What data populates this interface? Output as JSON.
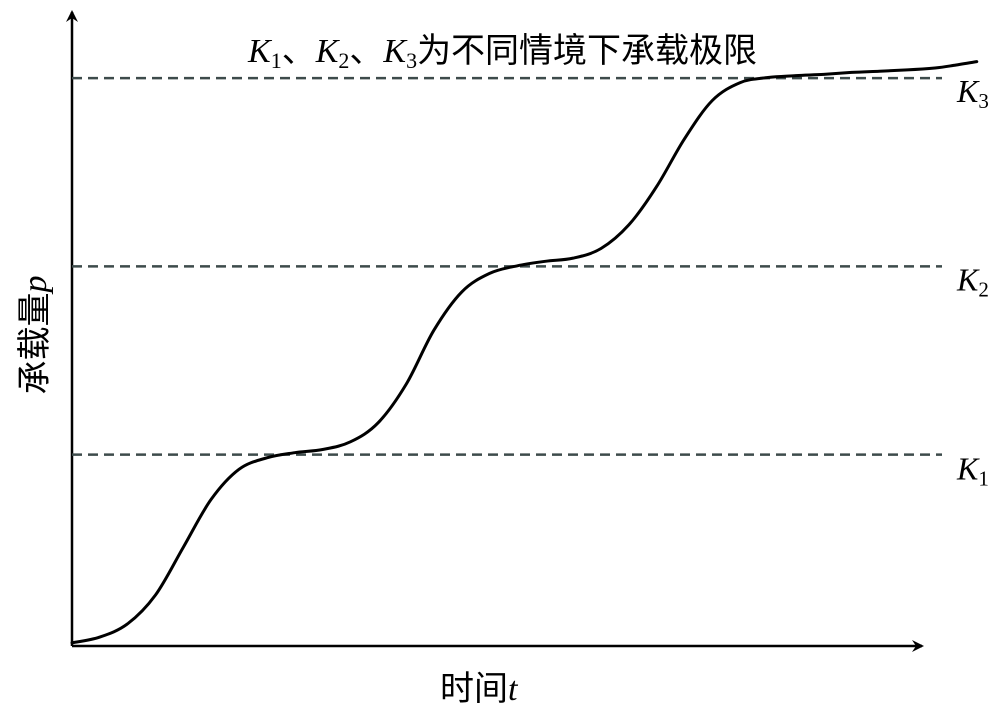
{
  "chart_data": {
    "type": "line",
    "title": {
      "k1": "K",
      "k1_sub": "1",
      "sep1": "、",
      "k2": "K",
      "k2_sub": "2",
      "sep2": "、",
      "k3": "K",
      "k3_sub": "3",
      "rest": "为不同情境下承载极限"
    },
    "xlabel": {
      "text": "时间",
      "var": "t"
    },
    "ylabel": {
      "text": "承载量",
      "var": "p"
    },
    "xlim": [
      0,
      100
    ],
    "ylim": [
      0,
      100
    ],
    "grid": false,
    "reference_lines": [
      {
        "name": "K",
        "sub": "1",
        "y": 30,
        "style": "dashed",
        "color": "#3d4b4b"
      },
      {
        "name": "K",
        "sub": "2",
        "y": 59.5,
        "style": "dashed",
        "color": "#3d4b4b"
      },
      {
        "name": "K",
        "sub": "3",
        "y": 89,
        "style": "dashed",
        "color": "#3d4b4b"
      }
    ],
    "series": [
      {
        "color": "#000000",
        "x": [
          0,
          3,
          6,
          9,
          12,
          15,
          18,
          21,
          24,
          27,
          30,
          33,
          36,
          39,
          42,
          45,
          48,
          51,
          54,
          57,
          60,
          63,
          66,
          69,
          72,
          75,
          78,
          81,
          84,
          87,
          90,
          93,
          95,
          97.5
        ],
        "y": [
          0.5,
          1.4,
          3.5,
          8.0,
          15.5,
          23.0,
          27.7,
          29.5,
          30.3,
          30.8,
          32.0,
          35.0,
          41.0,
          49.5,
          55.5,
          58.4,
          59.6,
          60.3,
          60.8,
          62.3,
          66.0,
          72.0,
          79.5,
          85.5,
          88.3,
          89.1,
          89.4,
          89.6,
          89.9,
          90.1,
          90.3,
          90.6,
          91.0,
          91.6
        ]
      }
    ]
  },
  "colors": {
    "axis": "#000000",
    "curve": "#000000",
    "limit": "#3d4b4b"
  }
}
